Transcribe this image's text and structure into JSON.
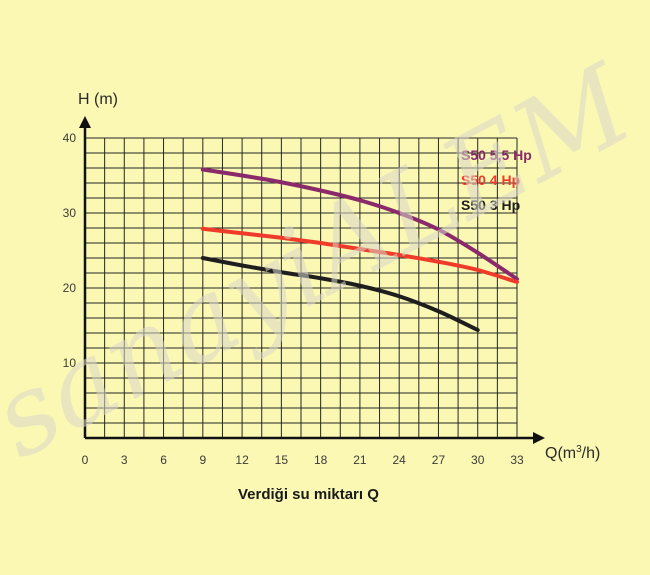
{
  "chart_data": {
    "type": "line",
    "ylabel": "H (m)",
    "xlabel": "Q(m3/h)",
    "xlabel_text": "Q(m",
    "xlabel_sup": "3",
    "xlabel_tail": "/h)",
    "caption": "Verdiği su miktarı Q",
    "xlim": [
      0,
      33
    ],
    "ylim": [
      0,
      40
    ],
    "x_ticks": [
      0,
      3,
      6,
      9,
      12,
      15,
      18,
      21,
      24,
      27,
      30,
      33
    ],
    "y_ticks": [
      10,
      20,
      30,
      40
    ],
    "grid": true,
    "legend_position": "top-right",
    "series": [
      {
        "name": "S50 5,5 Hp",
        "color": "#8a2a6a",
        "x": [
          9,
          12,
          15,
          18,
          21,
          24,
          27,
          30,
          33
        ],
        "y": [
          35.8,
          35.0,
          34.1,
          33.0,
          31.7,
          30.0,
          27.8,
          24.7,
          21.2
        ]
      },
      {
        "name": "S50 4 Hp",
        "color": "#ef3b2a",
        "x": [
          9,
          12,
          15,
          18,
          21,
          24,
          27,
          30,
          33
        ],
        "y": [
          27.9,
          27.3,
          26.7,
          26.0,
          25.2,
          24.4,
          23.5,
          22.4,
          20.8
        ]
      },
      {
        "name": "S50 3 Hp",
        "color": "#1e1e1e",
        "x": [
          9,
          12,
          15,
          18,
          21,
          24,
          27,
          30
        ],
        "y": [
          24.0,
          23.0,
          22.1,
          21.3,
          20.3,
          18.9,
          16.9,
          14.4
        ]
      }
    ]
  },
  "watermark": "sanayiALEM"
}
